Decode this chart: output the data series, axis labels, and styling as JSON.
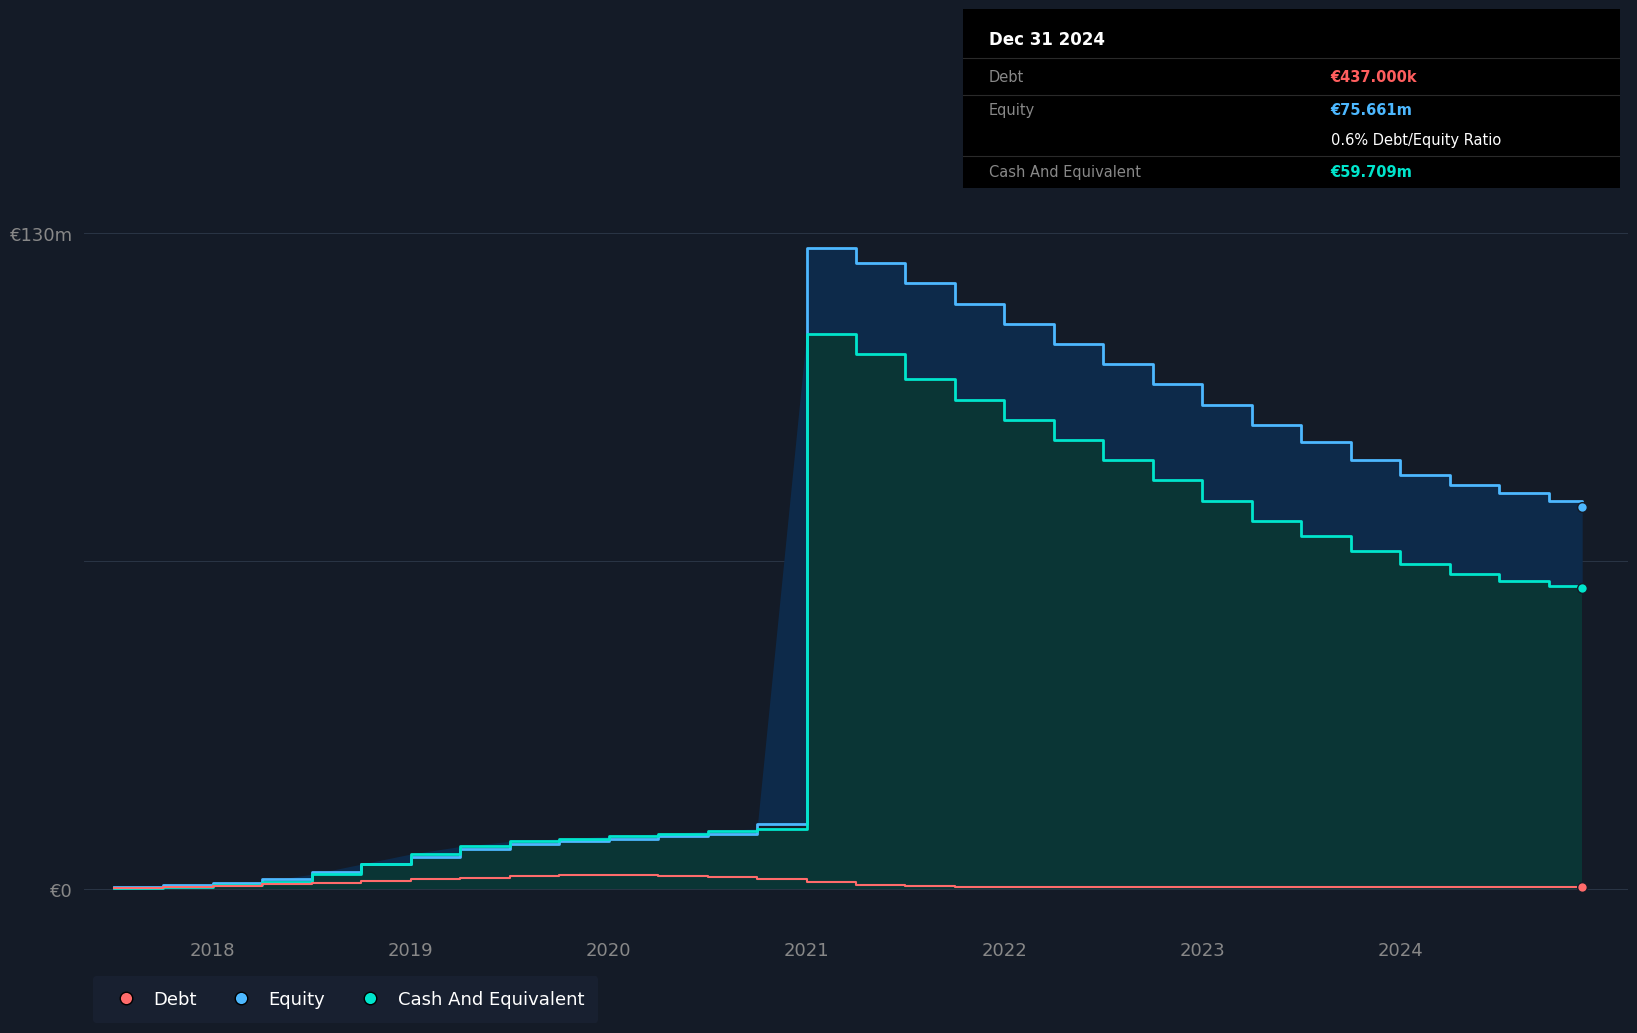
{
  "background_color": "#141b27",
  "plot_bg_color": "#141b27",
  "ylabel_130": "€130m",
  "ylabel_0": "€0",
  "debt_color": "#ff6b6b",
  "equity_color": "#4db8ff",
  "cash_color": "#00e5cc",
  "equity_fill_color": "#0d2a4a",
  "cash_fill_color": "#0a3535",
  "grid_color": "#2a3545",
  "ylim_max": 142,
  "ylim_min": -8,
  "xlim_min": 2017.35,
  "xlim_max": 2025.15,
  "x_quarterly": [
    2017.5,
    2017.75,
    2018.0,
    2018.25,
    2018.5,
    2018.75,
    2019.0,
    2019.25,
    2019.5,
    2019.75,
    2020.0,
    2020.25,
    2020.5,
    2020.75,
    2021.0,
    2021.25,
    2021.5,
    2021.75,
    2022.0,
    2022.25,
    2022.5,
    2022.75,
    2023.0,
    2023.25,
    2023.5,
    2023.75,
    2024.0,
    2024.25,
    2024.5,
    2024.75,
    2024.92
  ],
  "debt_values": [
    0.3,
    0.5,
    0.7,
    1.0,
    1.3,
    1.6,
    2.0,
    2.3,
    2.6,
    2.8,
    2.9,
    2.7,
    2.5,
    2.0,
    1.5,
    0.8,
    0.6,
    0.5,
    0.5,
    0.5,
    0.5,
    0.5,
    0.5,
    0.5,
    0.5,
    0.45,
    0.45,
    0.44,
    0.44,
    0.44,
    0.437
  ],
  "equity_values": [
    0.5,
    0.8,
    1.2,
    2.0,
    3.5,
    5.0,
    6.5,
    8.0,
    9.0,
    9.5,
    10.0,
    10.5,
    11.0,
    13.0,
    127.0,
    124.0,
    120.0,
    116.0,
    112.0,
    108.0,
    104.0,
    100.0,
    96.0,
    92.0,
    88.5,
    85.0,
    82.0,
    80.0,
    78.5,
    77.0,
    75.661
  ],
  "cash_values": [
    0.3,
    0.5,
    0.8,
    1.5,
    3.0,
    5.0,
    7.0,
    8.5,
    9.5,
    10.0,
    10.5,
    11.0,
    11.5,
    12.0,
    110.0,
    106.0,
    101.0,
    97.0,
    93.0,
    89.0,
    85.0,
    81.0,
    77.0,
    73.0,
    70.0,
    67.0,
    64.5,
    62.5,
    61.0,
    60.0,
    59.709
  ],
  "tooltip": {
    "date": "Dec 31 2024",
    "debt_label": "Debt",
    "debt_value": "€437.000k",
    "equity_label": "Equity",
    "equity_value": "€75.661m",
    "ratio_text": "0.6% Debt/Equity Ratio",
    "cash_label": "Cash And Equivalent",
    "cash_value": "€59.709m",
    "debt_value_color": "#ff5e5e",
    "equity_value_color": "#4db8ff",
    "cash_value_color": "#00e5cc"
  },
  "legend_items": [
    {
      "label": "Debt",
      "color": "#ff6b6b"
    },
    {
      "label": "Equity",
      "color": "#4db8ff"
    },
    {
      "label": "Cash And Equivalent",
      "color": "#00e5cc"
    }
  ],
  "xtick_labels": [
    "2018",
    "2019",
    "2020",
    "2021",
    "2022",
    "2023",
    "2024"
  ],
  "xtick_positions": [
    2018,
    2019,
    2020,
    2021,
    2022,
    2023,
    2024
  ]
}
